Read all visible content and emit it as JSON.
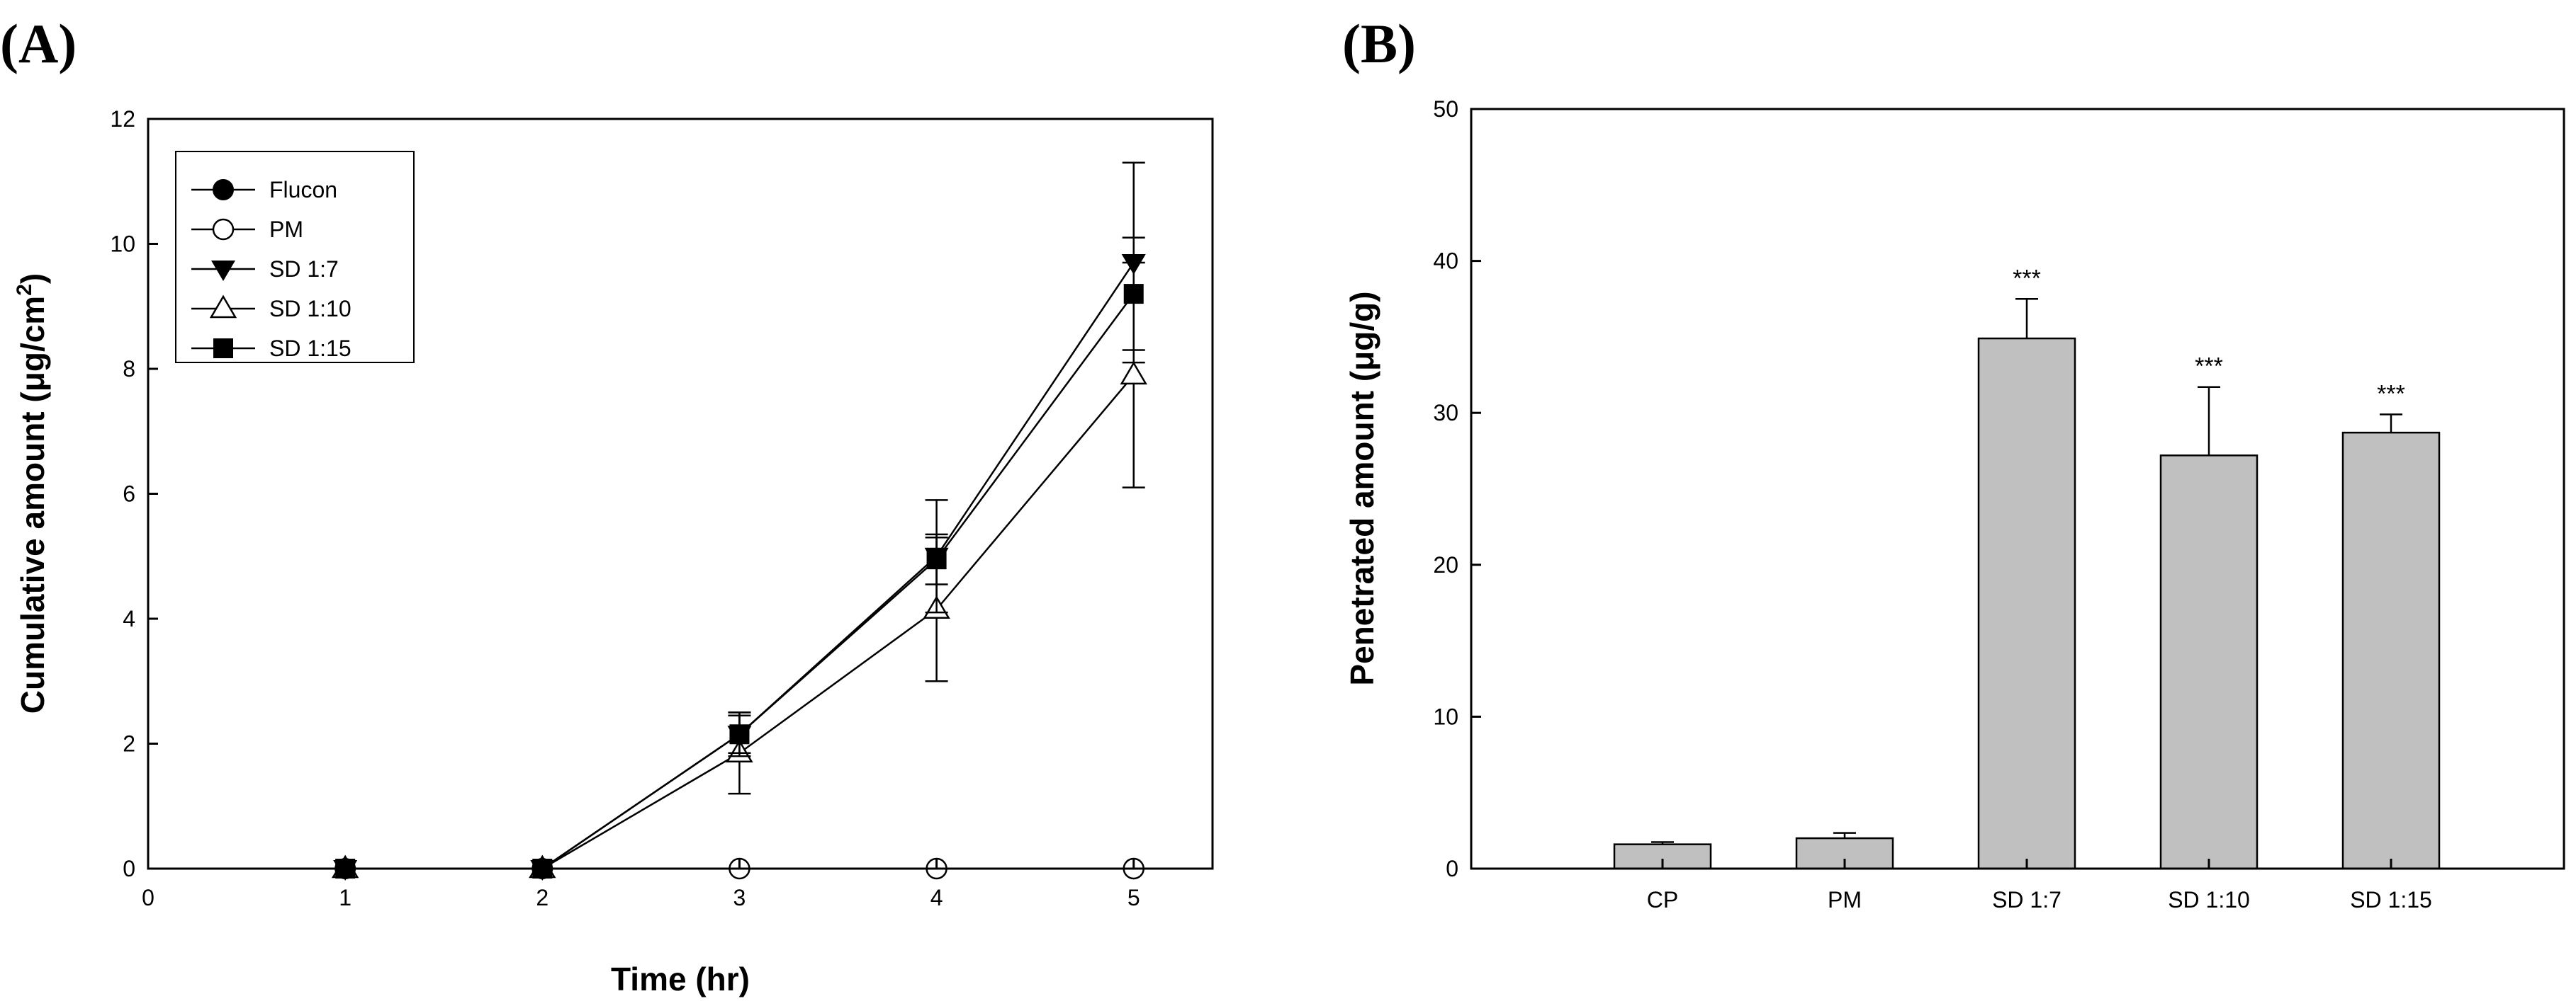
{
  "chart_data": [
    {
      "panel": "(A)",
      "type": "line",
      "xlabel": "Time (hr)",
      "ylabel": "Cumulative amount (μg/cm²)",
      "ylabel_main": "Cumulative amount (μg/cm",
      "ylabel_sup": "2",
      "ylabel_end": ")",
      "xlim": [
        0,
        5.4
      ],
      "ylim": [
        0,
        12
      ],
      "xticks": [
        0,
        1,
        2,
        3,
        4,
        5
      ],
      "yticks": [
        0,
        2,
        4,
        6,
        8,
        10,
        12
      ],
      "legend_position": "top-left",
      "series": [
        {
          "name": "Flucon",
          "marker": "filled-circle",
          "x": [
            1,
            2
          ],
          "y": [
            0,
            0
          ],
          "err": [
            0,
            0
          ]
        },
        {
          "name": "PM",
          "marker": "open-circle",
          "x": [
            3,
            4,
            5
          ],
          "y": [
            0,
            0,
            0
          ],
          "err": [
            0,
            0,
            0
          ]
        },
        {
          "name": "SD 1:7",
          "marker": "filled-triangle-down",
          "x": [
            1,
            2,
            3,
            4,
            5
          ],
          "y": [
            0,
            0,
            2.15,
            5.0,
            9.7
          ],
          "err": [
            0,
            0,
            0.35,
            0.9,
            1.6
          ]
        },
        {
          "name": "SD 1:10",
          "marker": "open-triangle-up",
          "x": [
            1,
            2,
            3,
            4,
            5
          ],
          "y": [
            0,
            0,
            1.85,
            4.15,
            7.9
          ],
          "err": [
            0,
            0,
            0.65,
            1.15,
            1.8
          ]
        },
        {
          "name": "SD 1:15",
          "marker": "filled-square",
          "x": [
            1,
            2,
            3,
            4,
            5
          ],
          "y": [
            0,
            0,
            2.15,
            4.95,
            9.2
          ],
          "err": [
            0,
            0,
            0.3,
            0.4,
            0.9
          ]
        }
      ]
    },
    {
      "panel": "(B)",
      "type": "bar",
      "xlabel": "",
      "ylabel": "Penetrated amount (μg/g)",
      "ylim": [
        0,
        50
      ],
      "yticks": [
        0,
        10,
        20,
        30,
        40,
        50
      ],
      "categories": [
        "CP",
        "PM",
        "SD 1:7",
        "SD 1:10",
        "SD 1:15"
      ],
      "values": [
        1.6,
        2.0,
        34.9,
        27.2,
        28.7
      ],
      "errors": [
        0.15,
        0.35,
        2.6,
        4.5,
        1.2
      ],
      "annotations": [
        "",
        "",
        "***",
        "***",
        "***"
      ],
      "bar_color": "#c0c0c0"
    }
  ]
}
